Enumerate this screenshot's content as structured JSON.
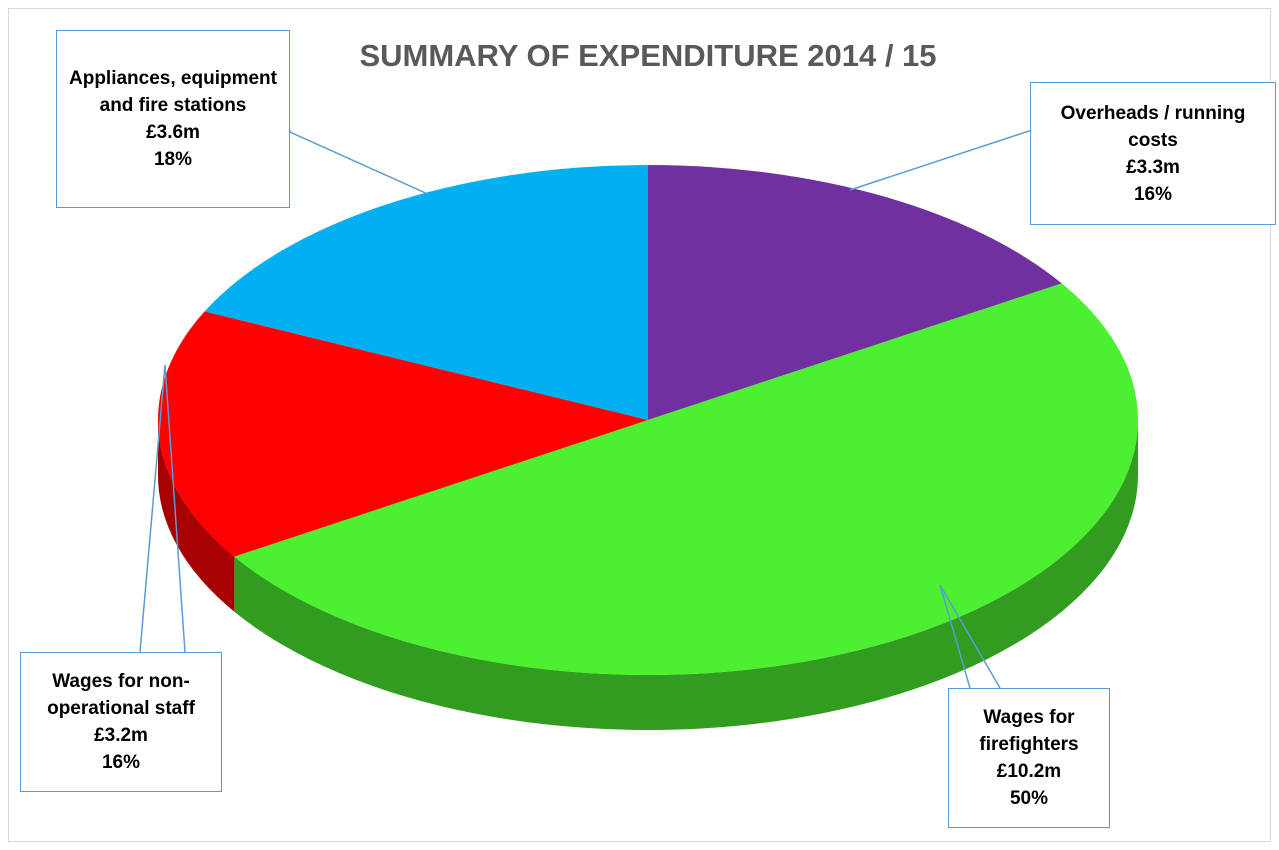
{
  "chart_data": {
    "type": "pie",
    "title": "SUMMARY OF EXPENDITURE 2014 / 15",
    "categories": [
      "Overheads / running costs",
      "Wages for firefighters",
      "Wages for non-operational staff",
      "Appliances, equipment and fire stations"
    ],
    "values": [
      16,
      50,
      16,
      18
    ],
    "value_labels": [
      "16%",
      "50%",
      "16%",
      "18%"
    ],
    "amounts": [
      3.3,
      10.2,
      3.2,
      3.6
    ],
    "amount_labels": [
      "£3.3m",
      "£10.2m",
      "£3.2m",
      "£3.6m"
    ],
    "colors": [
      "#7030a0",
      "#4cf030",
      "#ff0000",
      "#00b0f0"
    ]
  }
}
